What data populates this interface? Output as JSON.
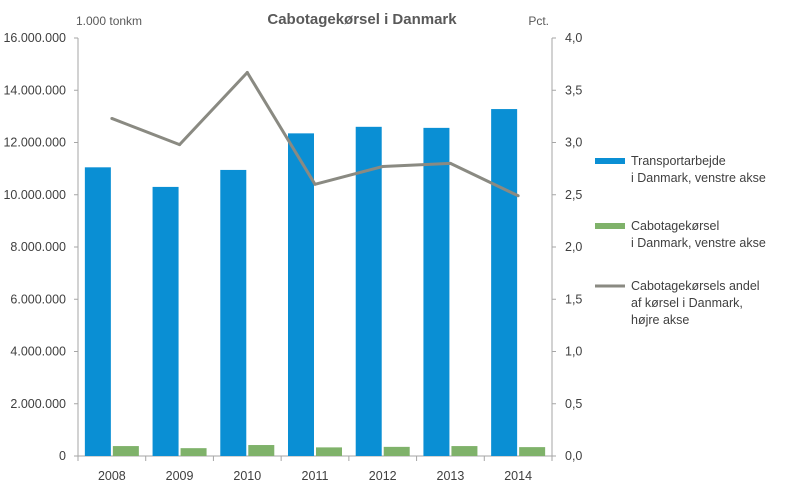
{
  "chart_data": {
    "type": "bar",
    "title": "Cabotagekørsel i Danmark",
    "left_axis_unit": "1.000 tonkm",
    "right_axis_unit": "Pct.",
    "categories": [
      "2008",
      "2009",
      "2010",
      "2011",
      "2012",
      "2013",
      "2014"
    ],
    "ylim_left": [
      0,
      16000000
    ],
    "yticks_left": [
      "0",
      "2.000.000",
      "4.000.000",
      "6.000.000",
      "8.000.000",
      "10.000.000",
      "12.000.000",
      "14.000.000",
      "16.000.000"
    ],
    "ylim_right": [
      0,
      4
    ],
    "yticks_right": [
      "0,0",
      "0,5",
      "1,0",
      "1,5",
      "2,0",
      "2,5",
      "3,0",
      "3,5",
      "4,0"
    ],
    "grid": false,
    "legend_position": "right",
    "series": [
      {
        "name": "Transportarbejde i Danmark, venstre akse",
        "legend_lines": [
          "Transportarbejde",
          "i Danmark, venstre akse"
        ],
        "type": "bar",
        "axis": "left",
        "color": "#0a8fd4",
        "values": [
          11050000,
          10300000,
          10950000,
          12350000,
          12600000,
          12560000,
          13280000
        ]
      },
      {
        "name": "Cabotagekørsel i Danmark, venstre akse",
        "legend_lines": [
          "Cabotagekørsel",
          "i Danmark, venstre akse"
        ],
        "type": "bar",
        "axis": "left",
        "color": "#7fb26a",
        "values": [
          380000,
          300000,
          420000,
          330000,
          350000,
          380000,
          340000
        ]
      },
      {
        "name": "Cabotagekørsels andel af kørsel i Danmark, højre akse",
        "legend_lines": [
          "Cabotagekørsels andel",
          "af kørsel i Danmark,",
          "højre akse"
        ],
        "type": "line",
        "axis": "right",
        "color": "#8a8a82",
        "values": [
          3.23,
          2.98,
          3.67,
          2.6,
          2.77,
          2.8,
          2.49
        ]
      }
    ]
  }
}
